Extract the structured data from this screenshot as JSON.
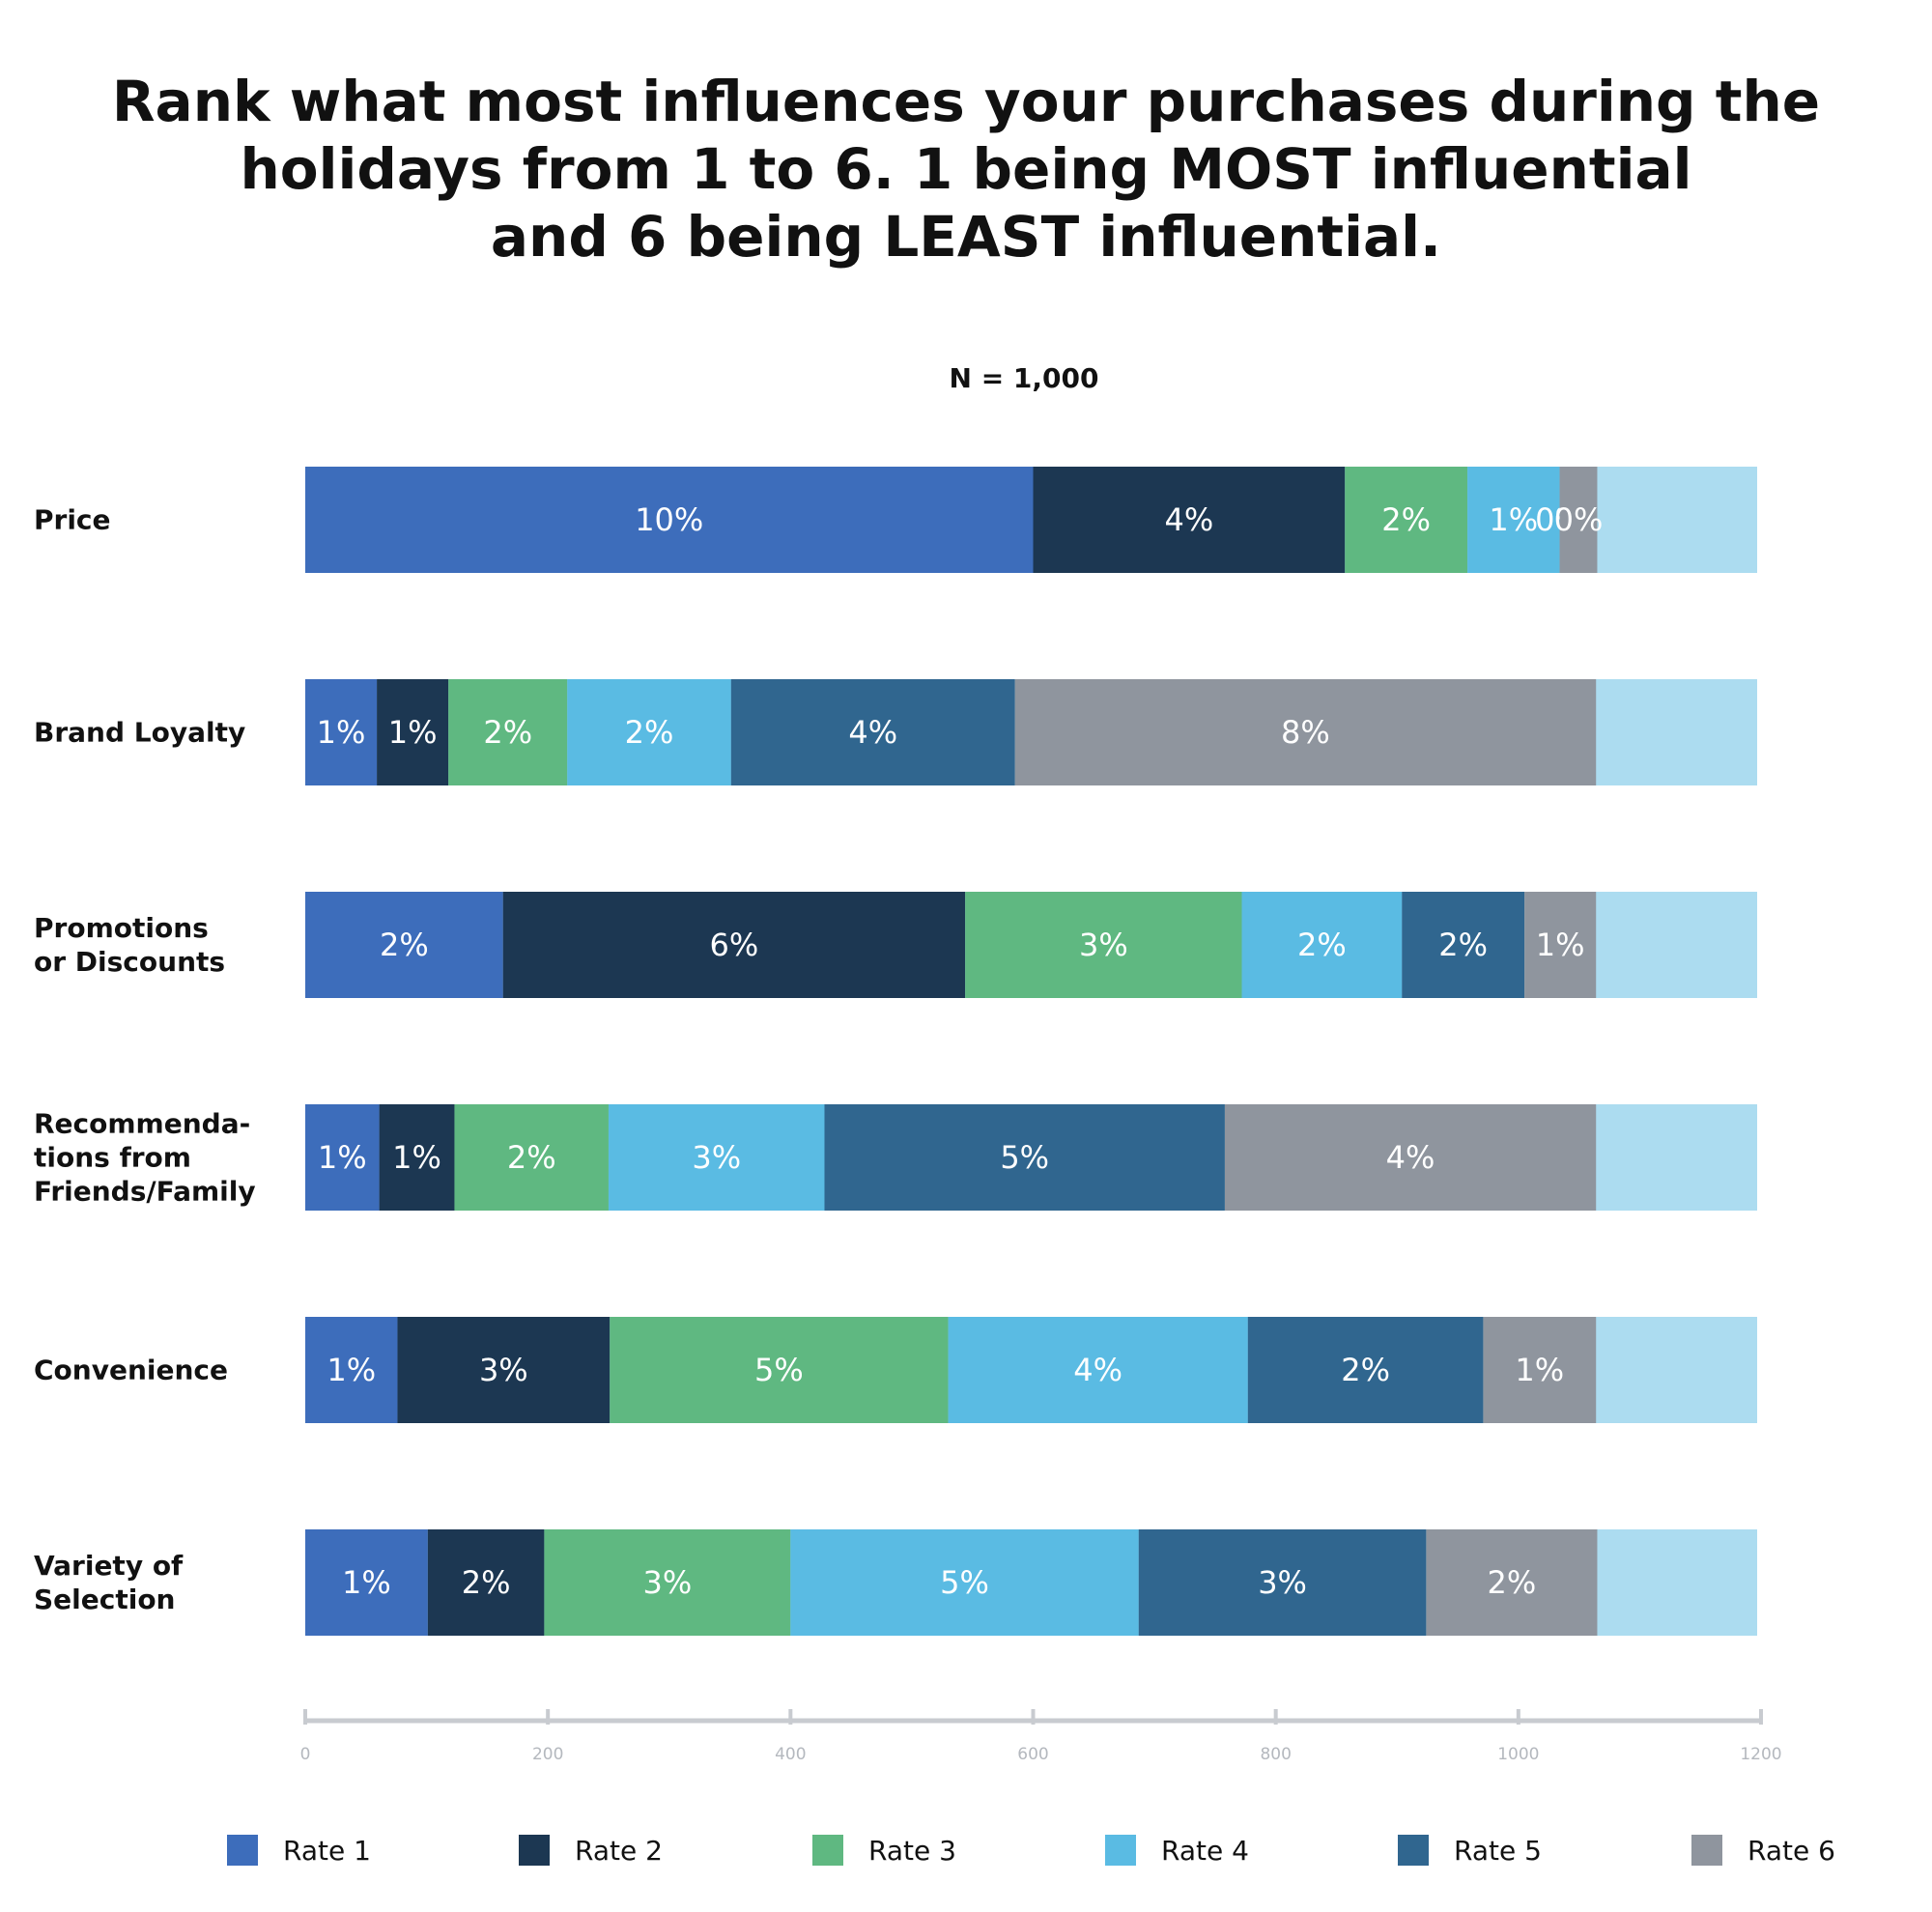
{
  "title_lines": [
    "Rank what most influences your purchases during the",
    "holidays from 1 to 6. 1 being MOST influential",
    "and 6 being LEAST influential."
  ],
  "chart_data": {
    "type": "bar",
    "orientation": "horizontal",
    "stacked": true,
    "subtitle": "N = 1,000",
    "categories": [
      [
        "Price"
      ],
      [
        "Brand Loyalty"
      ],
      [
        "Promotions",
        "or Discounts"
      ],
      [
        "Recommenda-",
        "tions from",
        "Friends/Family"
      ],
      [
        "Convenience"
      ],
      [
        "Variety of",
        "Selection"
      ]
    ],
    "series": [
      {
        "name": "Rate 1",
        "color": "#3d6dbb",
        "values": [
          600,
          59,
          163,
          61,
          76,
          101
        ],
        "labels": [
          "10%",
          "1%",
          "2%",
          "1%",
          "1%",
          "1%"
        ]
      },
      {
        "name": "Rate 2",
        "color": "#1c3752",
        "values": [
          257,
          59,
          381,
          62,
          175,
          96
        ],
        "labels": [
          "4%",
          "1%",
          "6%",
          "1%",
          "3%",
          "2%"
        ]
      },
      {
        "name": "Rate 3",
        "color": "#5fb881",
        "values": [
          101,
          98,
          228,
          127,
          279,
          203
        ],
        "labels": [
          "2%",
          "2%",
          "3%",
          "2%",
          "5%",
          "3%"
        ]
      },
      {
        "name": "Rate 4",
        "color": "#5abbe3",
        "values": [
          76,
          135,
          132,
          178,
          247,
          287
        ],
        "labels": [
          "1%",
          "2%",
          "2%",
          "3%",
          "4%",
          "5%"
        ]
      },
      {
        "name": "Rate 5",
        "color": "#30668f",
        "values": [
          0,
          234,
          101,
          330,
          194,
          237
        ],
        "labels": [
          "0%",
          "4%",
          "2%",
          "5%",
          "2%",
          "3%"
        ]
      },
      {
        "name": "Rate 6",
        "color": "#8f959e",
        "values": [
          31,
          479,
          59,
          306,
          93,
          141
        ],
        "labels": [
          "0%",
          "8%",
          "1%",
          "4%",
          "1%",
          "2%"
        ]
      }
    ],
    "remainder_color": "#acdcf0",
    "xlim": [
      0,
      1200
    ],
    "xticks": [
      "0",
      "200",
      "400",
      "600",
      "800",
      "1000",
      "1200"
    ],
    "axis_color": "#c8cbd0",
    "legend_position": "bottom"
  }
}
